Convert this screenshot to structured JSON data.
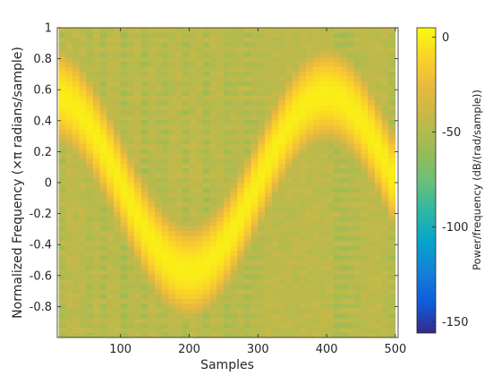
{
  "chart_data": {
    "type": "heatmap",
    "title": "",
    "xlabel": "Samples",
    "ylabel": "Normalized Frequency (×π radians/sample)",
    "xlim": [
      8,
      504
    ],
    "ylim": [
      -1,
      1
    ],
    "xticks": [
      100,
      200,
      300,
      400,
      500
    ],
    "xtick_labels": [
      "100",
      "200",
      "300",
      "400",
      "500"
    ],
    "yticks": [
      -0.8,
      -0.6,
      -0.4,
      -0.2,
      0,
      0.2,
      0.4,
      0.6,
      0.8,
      1
    ],
    "ytick_labels": [
      "-0.8",
      "-0.6",
      "-0.4",
      "-0.2",
      "0",
      "0.2",
      "0.4",
      "0.6",
      "0.8",
      "1"
    ],
    "colorbar": {
      "label": "Power/frequency (dB/(rad/sample))",
      "range": [
        -156,
        5
      ],
      "ticks": [
        0,
        -50,
        -100,
        -150
      ],
      "tick_labels": [
        "0",
        "-50",
        "-100",
        "-150"
      ],
      "colormap": "parula"
    },
    "time_bins": [
      15,
      25,
      35,
      45,
      55,
      65,
      75,
      85,
      95,
      105,
      115,
      125,
      135,
      145,
      155,
      165,
      175,
      185,
      195,
      205,
      215,
      225,
      235,
      245,
      255,
      265,
      275,
      285,
      295,
      305,
      315,
      325,
      335,
      345,
      355,
      365,
      375,
      385,
      395,
      405,
      415,
      425,
      435,
      445,
      455,
      465,
      475,
      485,
      495
    ],
    "ridge": {
      "description_shape": "sinusoidal frequency modulation",
      "center_frequency": 0,
      "amplitude": 0.57,
      "period_samples": 400,
      "peak_sample_max": 0,
      "peak_sample_min": 205,
      "peak_sample_max2": 400,
      "ridge_power_db": 0
    },
    "background_power_db": -45
  }
}
